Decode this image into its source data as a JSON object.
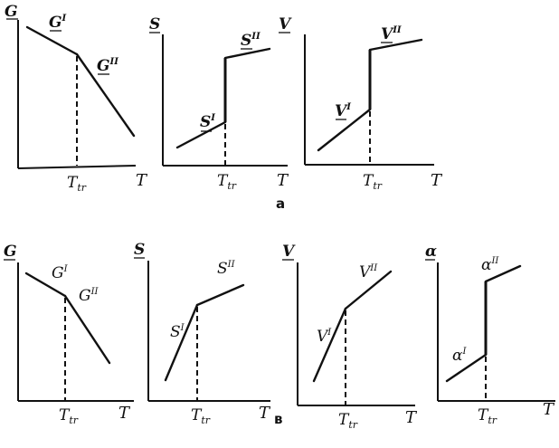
{
  "row_a": {
    "caption": "a",
    "g": {
      "y_label": "G",
      "phase1": "G",
      "phase1_sup": "I",
      "phase2": "G",
      "phase2_sup": "II",
      "x_label": "T",
      "tr_label": "T",
      "tr_sub": "tr"
    },
    "s": {
      "y_label": "S",
      "phase1": "S",
      "phase1_sup": "I",
      "phase2": "S",
      "phase2_sup": "II",
      "x_label": "T",
      "tr_label": "T",
      "tr_sub": "tr"
    },
    "v": {
      "y_label": "V",
      "phase1": "V",
      "phase1_sup": "I",
      "phase2": "V",
      "phase2_sup": "II",
      "x_label": "T",
      "tr_label": "T",
      "tr_sub": "tr"
    }
  },
  "row_b": {
    "caption": "в",
    "g": {
      "y_label": "G",
      "phase1": "G",
      "phase1_sup": "I",
      "phase2": "G",
      "phase2_sup": "II",
      "x_label": "T",
      "tr_label": "T",
      "tr_sub": "tr"
    },
    "s": {
      "y_label": "S",
      "phase1": "S",
      "phase1_sup": "I",
      "phase2": "S",
      "phase2_sup": "II",
      "x_label": "T",
      "tr_label": "T",
      "tr_sub": "tr"
    },
    "v": {
      "y_label": "V",
      "phase1": "V",
      "phase1_sup": "I",
      "phase2": "V",
      "phase2_sup": "II",
      "x_label": "T",
      "tr_label": "T",
      "tr_sub": "tr"
    },
    "alpha": {
      "y_label": "α",
      "phase1": "α",
      "phase1_sup": "I",
      "phase2": "α",
      "phase2_sup": "II",
      "x_label": "T",
      "tr_label": "T",
      "tr_sub": "tr"
    }
  }
}
